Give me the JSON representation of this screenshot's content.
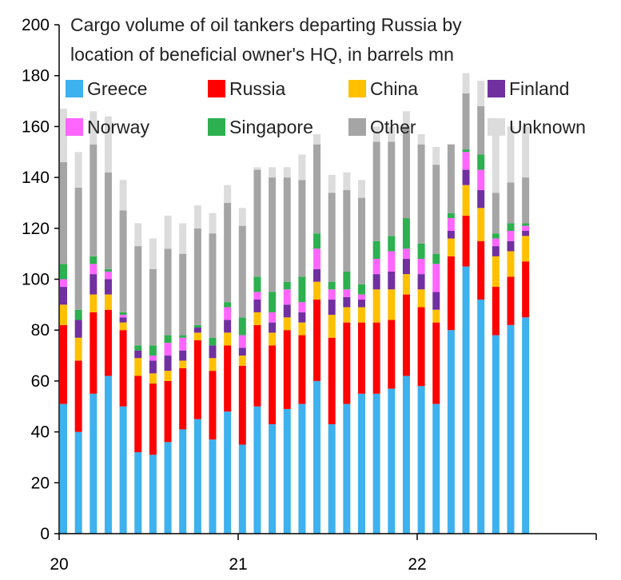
{
  "chart_data": {
    "type": "bar",
    "stacked": true,
    "title": [
      "Cargo volume of oil tankers departing Russia by",
      "location of beneficial owner's HQ, in barrels mn"
    ],
    "xlabel": "",
    "ylabel": "",
    "ylim": [
      0,
      200
    ],
    "yticks": [
      0,
      20,
      40,
      60,
      80,
      100,
      120,
      140,
      160,
      180,
      200
    ],
    "x_range": [
      0,
      3
    ],
    "xticks": [
      {
        "value": 0,
        "label": "20"
      },
      {
        "value": 1,
        "label": "21"
      },
      {
        "value": 2,
        "label": "22"
      }
    ],
    "categories": [
      "2020-01",
      "2020-02",
      "2020-03",
      "2020-04",
      "2020-05",
      "2020-06",
      "2020-07",
      "2020-08",
      "2020-09",
      "2020-10",
      "2020-11",
      "2020-12",
      "2021-01",
      "2021-02",
      "2021-03",
      "2021-04",
      "2021-05",
      "2021-06",
      "2021-07",
      "2021-08",
      "2021-09",
      "2021-10",
      "2021-11",
      "2021-12",
      "2022-01",
      "2022-02",
      "2022-03",
      "2022-04",
      "2022-05",
      "2022-06",
      "2022-07",
      "2022-08"
    ],
    "legend_position": "top",
    "series": [
      {
        "name": "Greece",
        "color": "#3EB1EF",
        "values": [
          51,
          40,
          55,
          62,
          50,
          32,
          31,
          36,
          41,
          45,
          37,
          48,
          35,
          50,
          43,
          49,
          51,
          60,
          43,
          51,
          55,
          55,
          57,
          62,
          58,
          51,
          80,
          105,
          92,
          78,
          82,
          85
        ]
      },
      {
        "name": "Russia",
        "color": "#FF0000",
        "values": [
          31,
          28,
          32,
          26,
          30,
          30,
          28,
          24,
          24,
          31,
          27,
          26,
          31,
          32,
          31,
          31,
          27,
          32,
          34,
          32,
          28,
          28,
          27,
          32,
          31,
          32,
          29,
          20,
          23,
          19,
          19,
          22
        ]
      },
      {
        "name": "China",
        "color": "#FFC000",
        "values": [
          8,
          9,
          7,
          6,
          3,
          7,
          4,
          4,
          3,
          3,
          5,
          5,
          4,
          5,
          5,
          5,
          5,
          7,
          9,
          6,
          6,
          13,
          12,
          8,
          7,
          5,
          7,
          12,
          13,
          12,
          10,
          10
        ]
      },
      {
        "name": "Finland",
        "color": "#7030A0",
        "values": [
          7,
          7,
          8,
          6,
          2,
          3,
          5,
          6,
          4,
          2,
          5,
          5,
          3,
          5,
          4,
          5,
          4,
          5,
          6,
          4,
          3,
          6,
          7,
          6,
          6,
          7,
          3,
          6,
          7,
          4,
          4,
          2
        ]
      },
      {
        "name": "Norway",
        "color": "#FF66FF",
        "values": [
          3,
          0,
          4,
          3,
          1,
          0,
          2,
          5,
          5,
          0,
          0,
          5,
          5,
          3,
          4,
          6,
          4,
          8,
          4,
          3,
          2,
          6,
          8,
          4,
          6,
          11,
          5,
          7,
          8,
          3,
          4,
          2
        ]
      },
      {
        "name": "Singapore",
        "color": "#2DB04F",
        "values": [
          6,
          4,
          3,
          1,
          1,
          2,
          4,
          3,
          1,
          1,
          3,
          2,
          7,
          6,
          8,
          3,
          10,
          6,
          3,
          7,
          4,
          7,
          6,
          12,
          6,
          4,
          2,
          1,
          6,
          2,
          3,
          1
        ]
      },
      {
        "name": "Other",
        "color": "#A5A5A5",
        "values": [
          40,
          48,
          44,
          38,
          40,
          39,
          30,
          34,
          32,
          38,
          41,
          39,
          36,
          42,
          45,
          41,
          38,
          35,
          35,
          32,
          34,
          39,
          37,
          36,
          39,
          35,
          27,
          22,
          19,
          16,
          16,
          18
        ]
      },
      {
        "name": "Unknown",
        "color": "#DCDCDC",
        "values": [
          21,
          14,
          13,
          22,
          12,
          9,
          12,
          13,
          12,
          9,
          8,
          7,
          7,
          1,
          4,
          4,
          10,
          4,
          7,
          7,
          7,
          6,
          6,
          6,
          4,
          7,
          0,
          8,
          10,
          25,
          22,
          20
        ]
      }
    ]
  }
}
